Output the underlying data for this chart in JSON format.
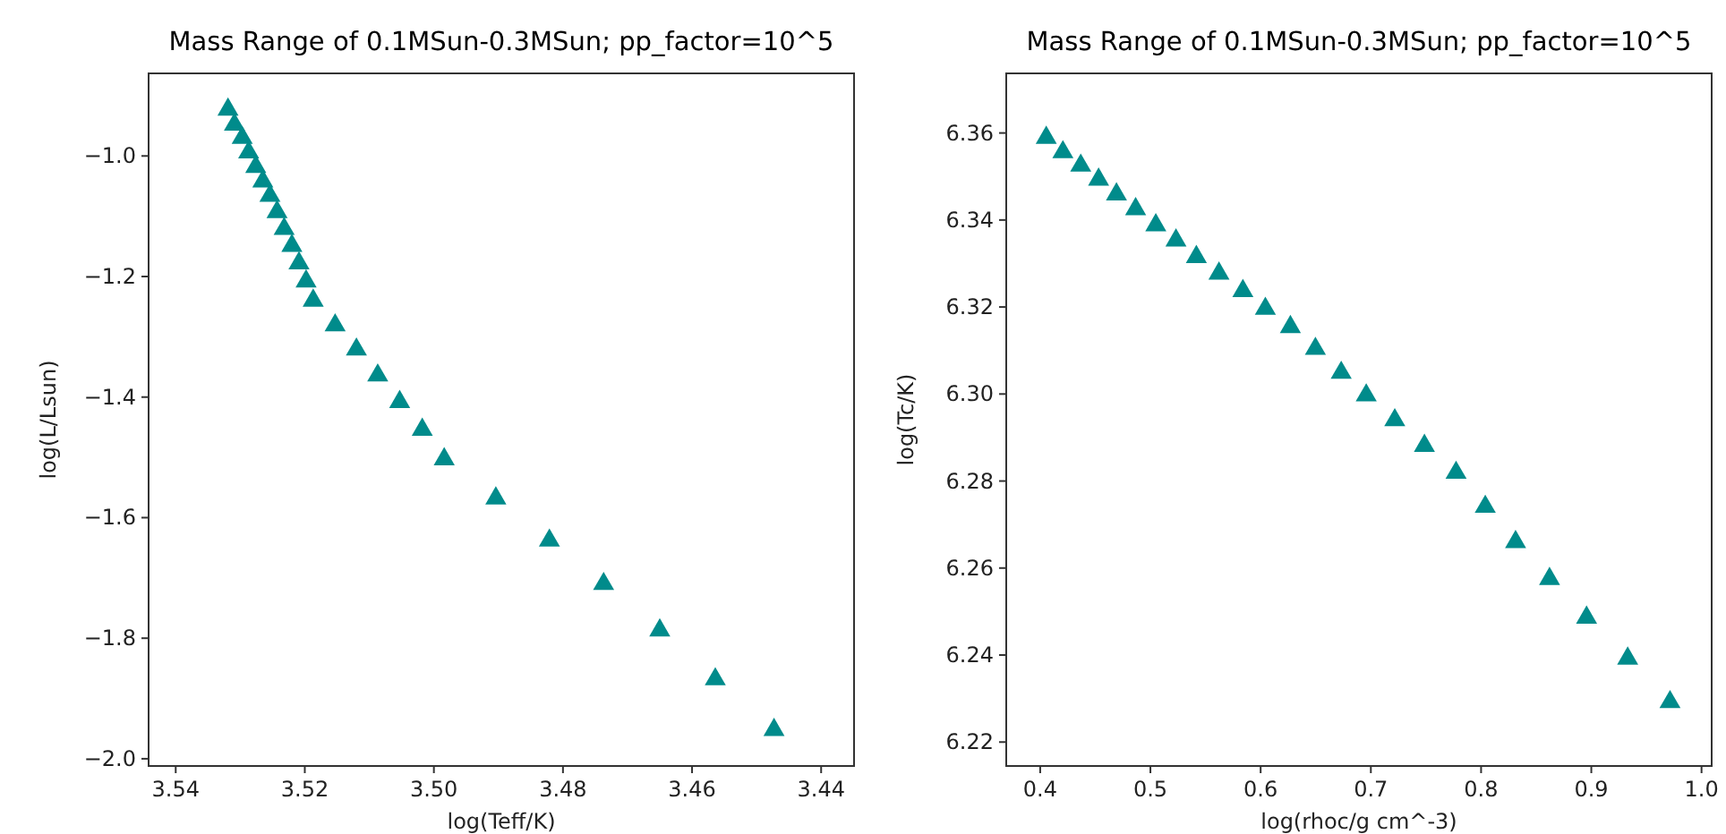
{
  "chart_data": [
    {
      "type": "scatter",
      "title": "Mass Range of 0.1MSun-0.3MSun; pp_factor=10^5",
      "xlabel": "log(Teff/K)",
      "ylabel": "log(L/Lsun)",
      "marker": "triangle",
      "xlim": [
        3.5442,
        3.4349
      ],
      "xticks": [
        {
          "value": 3.54,
          "label": "3.54"
        },
        {
          "value": 3.52,
          "label": "3.52"
        },
        {
          "value": 3.5,
          "label": "3.50"
        },
        {
          "value": 3.48,
          "label": "3.48"
        },
        {
          "value": 3.46,
          "label": "3.46"
        },
        {
          "value": 3.44,
          "label": "3.44"
        }
      ],
      "ylim": [
        -2.012,
        -0.863
      ],
      "yticks": [
        {
          "value": -1,
          "label": "−1.0"
        },
        {
          "value": -1.2,
          "label": "−1.2"
        },
        {
          "value": -1.4,
          "label": "−1.4"
        },
        {
          "value": -1.6,
          "label": "−1.6"
        },
        {
          "value": -1.8,
          "label": "−1.8"
        },
        {
          "value": -2,
          "label": "−2.0"
        }
      ],
      "series": [
        {
          "color": "#008b8b",
          "x": [
            3.5319,
            3.5309,
            3.5297,
            3.5287,
            3.5276,
            3.5265,
            3.5254,
            3.5243,
            3.5232,
            3.522,
            3.5209,
            3.5198,
            3.5187,
            3.5153,
            3.512,
            3.5087,
            3.5053,
            3.5018,
            3.4984,
            3.4904,
            3.4821,
            3.4737,
            3.465,
            3.4564,
            3.4473
          ],
          "values": [
            -0.923,
            -0.948,
            -0.97,
            -0.994,
            -1.018,
            -1.042,
            -1.066,
            -1.093,
            -1.121,
            -1.149,
            -1.178,
            -1.208,
            -1.24,
            -1.281,
            -1.321,
            -1.364,
            -1.408,
            -1.454,
            -1.503,
            -1.568,
            -1.638,
            -1.71,
            -1.787,
            -1.868,
            -1.952
          ]
        }
      ]
    },
    {
      "type": "scatter",
      "title": "Mass Range of 0.1MSun-0.3MSun; pp_factor=10^5",
      "xlabel": "log(rhoc/g cm^-3)",
      "ylabel": "log(Tc/K)",
      "marker": "triangle",
      "xlim": [
        0.3692,
        1.0092
      ],
      "xticks": [
        {
          "value": 0.4,
          "label": "0.4"
        },
        {
          "value": 0.5,
          "label": "0.5"
        },
        {
          "value": 0.6,
          "label": "0.6"
        },
        {
          "value": 0.7,
          "label": "0.7"
        },
        {
          "value": 0.8,
          "label": "0.8"
        },
        {
          "value": 0.9,
          "label": "0.9"
        },
        {
          "value": 1,
          "label": "1.0"
        }
      ],
      "ylim": [
        6.2145,
        6.3737
      ],
      "yticks": [
        {
          "value": 6.22,
          "label": "6.22"
        },
        {
          "value": 6.24,
          "label": "6.24"
        },
        {
          "value": 6.26,
          "label": "6.26"
        },
        {
          "value": 6.28,
          "label": "6.28"
        },
        {
          "value": 6.3,
          "label": "6.30"
        },
        {
          "value": 6.32,
          "label": "6.32"
        },
        {
          "value": 6.34,
          "label": "6.34"
        },
        {
          "value": 6.36,
          "label": "6.36"
        }
      ],
      "series": [
        {
          "color": "#008b8b",
          "x": [
            0.4055,
            0.4206,
            0.4368,
            0.453,
            0.4692,
            0.4866,
            0.5049,
            0.5232,
            0.5417,
            0.5622,
            0.5839,
            0.6043,
            0.627,
            0.6497,
            0.6731,
            0.6958,
            0.7217,
            0.7486,
            0.7773,
            0.8038,
            0.8313,
            0.8621,
            0.8957,
            0.933,
            0.9714
          ],
          "values": [
            6.3589,
            6.3556,
            6.3525,
            6.3493,
            6.3459,
            6.3425,
            6.3388,
            6.3353,
            6.3315,
            6.3277,
            6.3237,
            6.3196,
            6.3154,
            6.3104,
            6.3049,
            6.2997,
            6.294,
            6.2881,
            6.2819,
            6.2741,
            6.266,
            6.2575,
            6.2486,
            6.2392,
            6.2292
          ]
        }
      ]
    }
  ]
}
